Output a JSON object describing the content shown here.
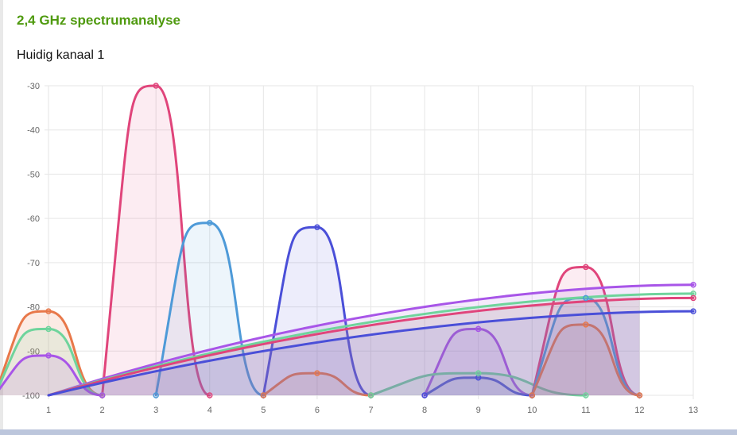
{
  "header": {
    "title": "2,4 GHz spectrumanalyse",
    "current_channel_label": "Huidig kanaal 1"
  },
  "chart_data": {
    "type": "area",
    "x": [
      1,
      2,
      3,
      4,
      5,
      6,
      7,
      8,
      9,
      10,
      11,
      12,
      13
    ],
    "xlim": [
      1,
      13
    ],
    "ylim": [
      -100,
      -30
    ],
    "yticks": [
      -30,
      -40,
      -50,
      -60,
      -70,
      -80,
      -90,
      -100
    ],
    "grid": true,
    "series": [
      {
        "color": "#e0457b",
        "fill": "rgba(224,69,123,0.10)",
        "kind": "bump",
        "start": 2,
        "end": 4,
        "peak": -30
      },
      {
        "color": "#4e9ad8",
        "fill": "rgba(78,154,216,0.10)",
        "kind": "bump",
        "start": 3,
        "end": 5,
        "peak": -61
      },
      {
        "color": "#4a4fd8",
        "fill": "rgba(74,79,216,0.10)",
        "kind": "bump",
        "start": 5,
        "end": 7,
        "peak": -62
      },
      {
        "color": "#e8784a",
        "fill": "rgba(232,120,74,0.12)",
        "kind": "bump",
        "start": 5,
        "end": 7,
        "peak": -95
      },
      {
        "color": "#e8784a",
        "fill": "rgba(232,120,74,0.15)",
        "kind": "bump",
        "start": 0,
        "end": 2,
        "peak": -81
      },
      {
        "color": "#6fd49c",
        "fill": "rgba(111,212,156,0.12)",
        "kind": "bump",
        "start": 0,
        "end": 2,
        "peak": -85
      },
      {
        "color": "#a855e8",
        "fill": "rgba(168,85,232,0.12)",
        "kind": "bump",
        "start": 0,
        "end": 2,
        "peak": -91
      },
      {
        "color": "#a855e8",
        "fill": "rgba(168,85,232,0.12)",
        "kind": "bump",
        "start": 8,
        "end": 10,
        "peak": -85
      },
      {
        "color": "#4a4fd8",
        "fill": "rgba(74,79,216,0.10)",
        "kind": "bump",
        "start": 8,
        "end": 10,
        "peak": -96
      },
      {
        "color": "#6fd49c",
        "fill": "rgba(111,212,156,0.12)",
        "kind": "bump",
        "start": 7,
        "end": 11,
        "peak": -95
      },
      {
        "color": "#e0457b",
        "fill": "rgba(224,69,123,0.10)",
        "kind": "bump",
        "start": 10,
        "end": 12,
        "peak": -71
      },
      {
        "color": "#4e9ad8",
        "fill": "rgba(78,154,216,0.10)",
        "kind": "bump",
        "start": 10,
        "end": 12,
        "peak": -78
      },
      {
        "color": "#e8784a",
        "fill": "rgba(232,120,74,0.12)",
        "kind": "bump",
        "start": 10,
        "end": 12,
        "peak": -84
      },
      {
        "color": "#a855e8",
        "fill": "rgba(168,85,232,0.12)",
        "kind": "rise",
        "start": 1,
        "end": 13,
        "peak": -75
      },
      {
        "color": "#6fd49c",
        "fill": "rgba(111,212,156,0.12)",
        "kind": "rise",
        "start": 1,
        "end": 13,
        "peak": -77
      },
      {
        "color": "#e0457b",
        "fill": "rgba(224,69,123,0.10)",
        "kind": "rise",
        "start": 1,
        "end": 13,
        "peak": -78
      },
      {
        "color": "#4a4fd8",
        "fill": "rgba(74,79,216,0.10)",
        "kind": "rise",
        "start": 1,
        "end": 13,
        "peak": -81
      }
    ]
  }
}
